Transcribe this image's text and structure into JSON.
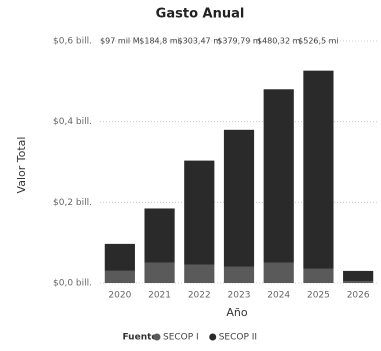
{
  "chart_data": {
    "type": "stacked_bar",
    "title": "Gasto Anual",
    "x_label": "Año",
    "y_label": "Valor Total",
    "categories": [
      "2020",
      "2021",
      "2022",
      "2023",
      "2024",
      "2025",
      "2026"
    ],
    "series": [
      {
        "name": "SECOP I",
        "color": "#5a5a5a",
        "values": [
          0.03,
          0.05,
          0.045,
          0.04,
          0.05,
          0.035,
          0.005
        ]
      },
      {
        "name": "SECOP II",
        "color": "#2a2a2a",
        "values": [
          0.067,
          0.1348,
          0.25847,
          0.33979,
          0.43032,
          0.4915,
          0.025
        ]
      }
    ],
    "totals": {
      "values": [
        0.097,
        0.1848,
        0.30347,
        0.37979,
        0.48032,
        0.5265,
        null
      ],
      "value_labels": [
        "$97 mil M",
        "$184,8 mi",
        "$303,47 m",
        "$379,79 m",
        "$480,32 m",
        "$526,5 mi",
        null
      ]
    },
    "legend_title": "Fuente",
    "ylim": [
      0,
      0.6
    ],
    "yticks": [
      {
        "value": 0,
        "label": "$0,0 bill."
      },
      {
        "value": 0.2,
        "label": "$0,2 bill."
      },
      {
        "value": 0.4,
        "label": "$0,4 bill."
      },
      {
        "value": 0.6,
        "label": "$0,6 bill."
      }
    ],
    "grid": true
  }
}
